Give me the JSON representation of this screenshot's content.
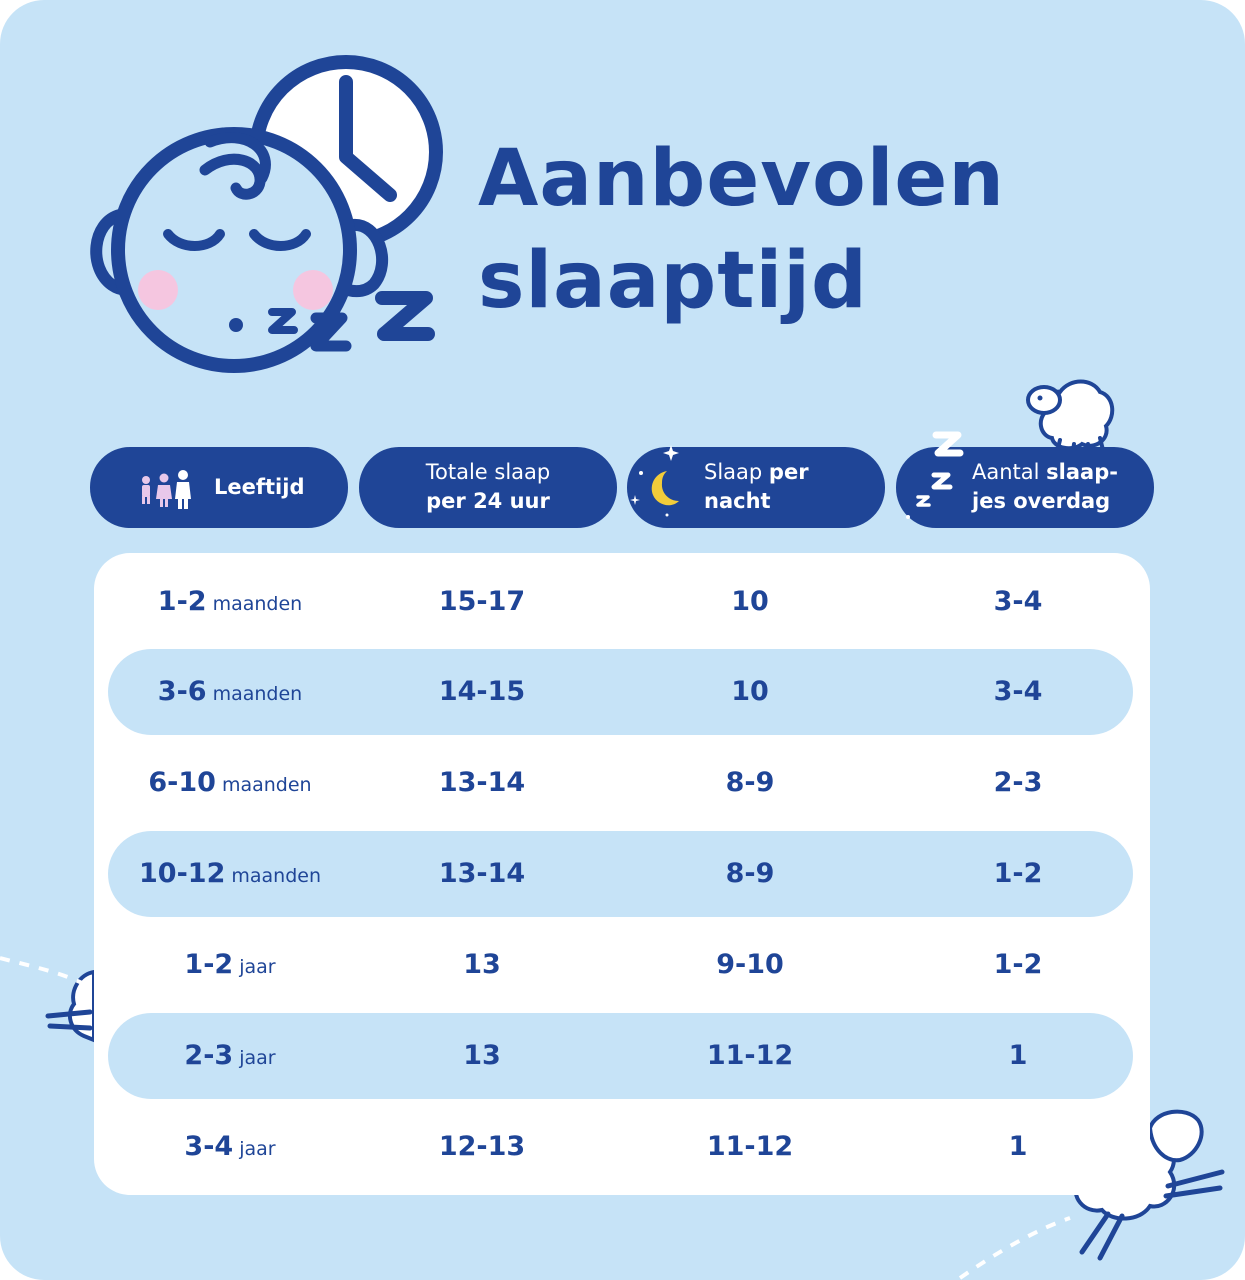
{
  "title": {
    "line1": "Aanbevolen",
    "line2": "slaaptijd"
  },
  "colors": {
    "background": "#c6e3f7",
    "primary": "#1f4597",
    "panel": "#ffffff",
    "row_shade": "#c6e3f7",
    "cheek": "#f5c6e0",
    "moon": "#f2cc3a"
  },
  "headers": [
    {
      "icon": "family-icon",
      "bold": "Leeftijd"
    },
    {
      "icon": "",
      "line1": "Totale slaap",
      "line2": "per 24 uur"
    },
    {
      "icon": "moon-stars-icon",
      "line1_normal": "Slaap ",
      "line1_bold": "per",
      "line2": "nacht"
    },
    {
      "icon": "zzz-icon",
      "line1_normal": "Aantal ",
      "line1_bold": "slaap-",
      "line2": "jes overdag"
    }
  ],
  "rows": [
    {
      "age": "1-2",
      "unit": "maanden",
      "total": "15-17",
      "night": "10",
      "naps": "3-4"
    },
    {
      "age": "3-6",
      "unit": "maanden",
      "total": "14-15",
      "night": "10",
      "naps": "3-4"
    },
    {
      "age": "6-10",
      "unit": "maanden",
      "total": "13-14",
      "night": "8-9",
      "naps": "2-3"
    },
    {
      "age": "10-12",
      "unit": "maanden",
      "total": "13-14",
      "night": "8-9",
      "naps": "1-2"
    },
    {
      "age": "1-2",
      "unit": "jaar",
      "total": "13",
      "night": "9-10",
      "naps": "1-2"
    },
    {
      "age": "2-3",
      "unit": "jaar",
      "total": "13",
      "night": "11-12",
      "naps": "1"
    },
    {
      "age": "3-4",
      "unit": "jaar",
      "total": "12-13",
      "night": "11-12",
      "naps": "1"
    }
  ],
  "illustrations": [
    "sleeping-baby-icon",
    "clock-icon",
    "zzz-icon",
    "sheep-icon"
  ]
}
